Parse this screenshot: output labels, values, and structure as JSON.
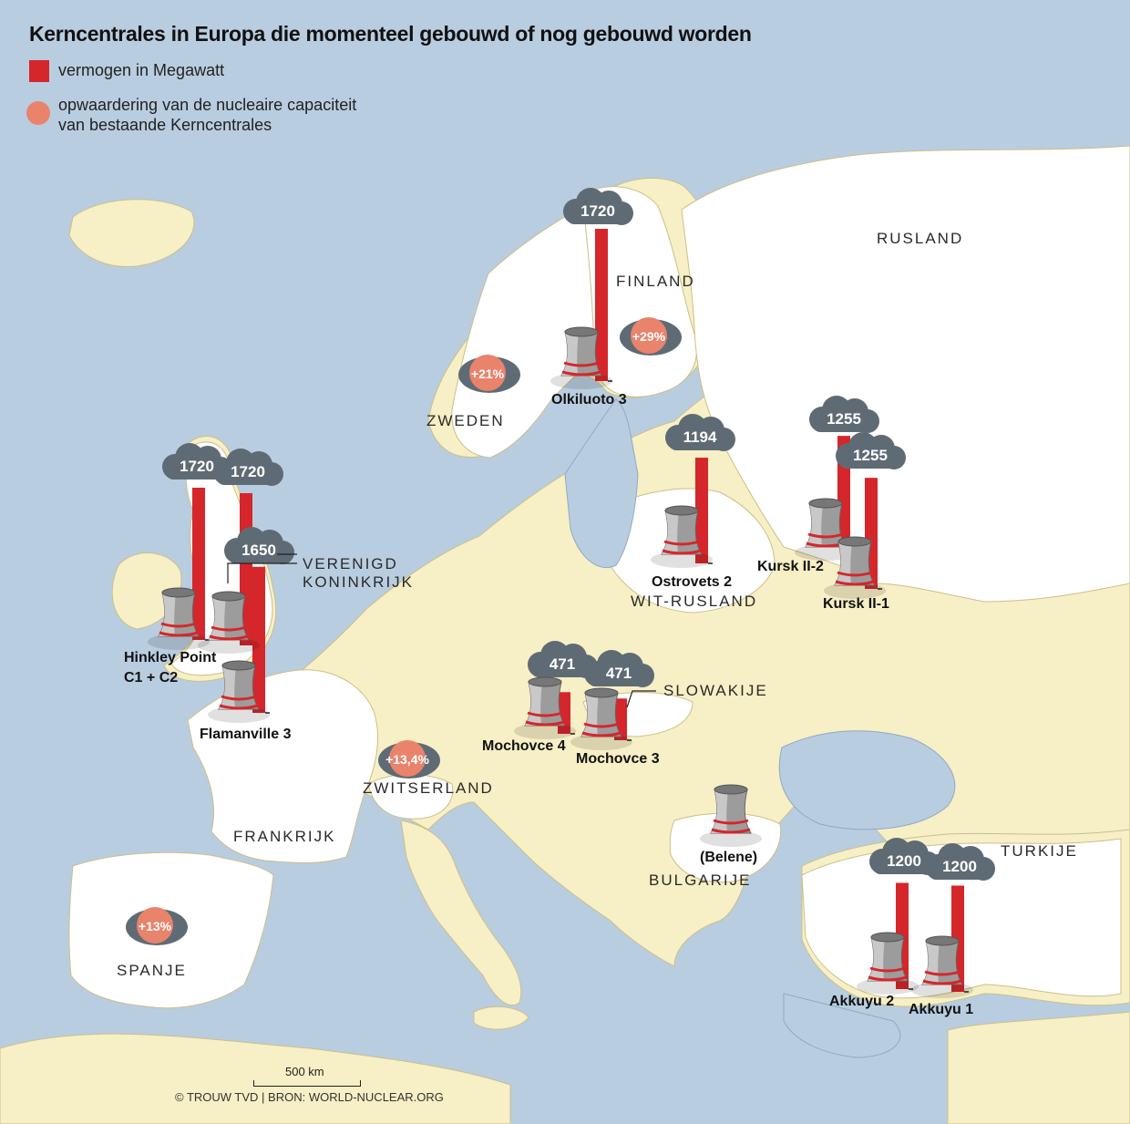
{
  "title": "Kerncentrales in Europa die momenteel gebouwd of nog gebouwd worden",
  "legend": {
    "capacity": "vermogen in Megawatt",
    "upgrade_line1": "opwaardering van de nucleaire capaciteit",
    "upgrade_line2": "van bestaande Kerncentrales",
    "colors": {
      "bar": "#d5262b",
      "upgrade": "#e9836c",
      "cloud": "#5f6b74"
    }
  },
  "countries": {
    "rusland": "RUSLAND",
    "finland": "FINLAND",
    "zweden": "ZWEDEN",
    "vk_line1": "VERENIGD",
    "vk_line2": "KONINKRIJK",
    "witrusland": "WIT-RUSLAND",
    "slowakije": "SLOWAKIJE",
    "zwitserland": "ZWITSERLAND",
    "frankrijk": "FRANKRIJK",
    "bulgarije": "BULGARIJE",
    "turkije": "TURKIJE",
    "spanje": "SPANJE"
  },
  "plants": {
    "olkiluoto": {
      "name": "Olkiluoto 3",
      "mw": 1720,
      "mw_label": "1720"
    },
    "hinkley_c1": {
      "mw": 1720,
      "mw_label": "1720"
    },
    "hinkley_c2": {
      "mw": 1720,
      "mw_label": "1720"
    },
    "hinkley_line1": "Hinkley Point",
    "hinkley_line2": "C1 + C2",
    "flamanville": {
      "name": "Flamanville 3",
      "mw": 1650,
      "mw_label": "1650"
    },
    "ostrovets": {
      "name": "Ostrovets 2",
      "mw": 1194,
      "mw_label": "1194"
    },
    "kursk2": {
      "name": "Kursk II-2",
      "mw": 1255,
      "mw_label": "1255"
    },
    "kursk1": {
      "name": "Kursk II-1",
      "mw": 1255,
      "mw_label": "1255"
    },
    "mochovce4": {
      "name": "Mochovce 4",
      "mw": 471,
      "mw_label": "471"
    },
    "mochovce3": {
      "name": "Mochovce 3",
      "mw": 471,
      "mw_label": "471"
    },
    "belene": {
      "name": "(Belene)"
    },
    "akkuyu2": {
      "name": "Akkuyu 2",
      "mw": 1200,
      "mw_label": "1200"
    },
    "akkuyu1": {
      "name": "Akkuyu 1",
      "mw": 1200,
      "mw_label": "1200"
    }
  },
  "upgrades": {
    "finland": "+29%",
    "sweden": "+21%",
    "switzerland": "+13,4%",
    "spain": "+13%"
  },
  "scale": "500 km",
  "footer": "© TROUW TVD | BRON: WORLD-NUCLEAR.ORG"
}
